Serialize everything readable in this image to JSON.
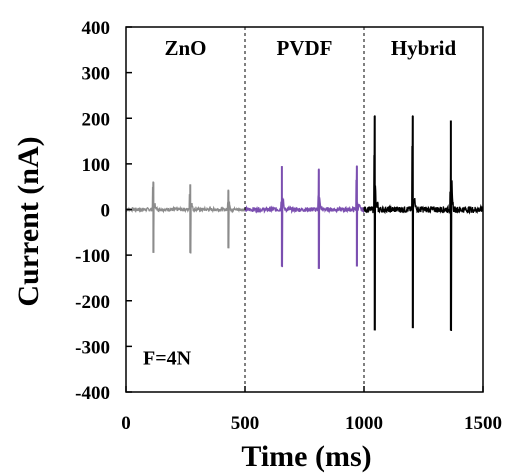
{
  "chart_data": {
    "type": "line",
    "xlabel": "Time (ms)",
    "ylabel": "Current (nA)",
    "xlim": [
      0,
      1500
    ],
    "ylim": [
      -400,
      400
    ],
    "x_ticks": [
      0,
      500,
      1000,
      1500
    ],
    "y_ticks": [
      400,
      300,
      200,
      100,
      0,
      -100,
      -200,
      -300,
      -400
    ],
    "grid": false,
    "legend": "none",
    "region_labels": [
      "ZnO",
      "PVDF",
      "Hybrid"
    ],
    "region_boundaries": [
      500,
      1000
    ],
    "annotation": "F=4N",
    "series": [
      {
        "color": "#8c8c8c",
        "x_range": [
          0,
          500
        ],
        "baseline_noise": 4,
        "peaks": [
          {
            "x": 115,
            "max": 60,
            "min": -95
          },
          {
            "x": 270,
            "max": 55,
            "min": -95
          },
          {
            "x": 430,
            "max": 42,
            "min": -85
          }
        ]
      },
      {
        "color": "#7b4fb0",
        "x_range": [
          500,
          1000
        ],
        "baseline_noise": 5,
        "peaks": [
          {
            "x": 655,
            "max": 95,
            "min": -125
          },
          {
            "x": 810,
            "max": 88,
            "min": -130
          },
          {
            "x": 970,
            "max": 95,
            "min": -125
          }
        ]
      },
      {
        "color": "#000000",
        "x_range": [
          1000,
          1500
        ],
        "baseline_noise": 7,
        "peaks": [
          {
            "x": 1045,
            "max": 205,
            "min": -265
          },
          {
            "x": 1205,
            "max": 205,
            "min": -260
          },
          {
            "x": 1365,
            "max": 195,
            "min": -265
          }
        ]
      }
    ]
  }
}
